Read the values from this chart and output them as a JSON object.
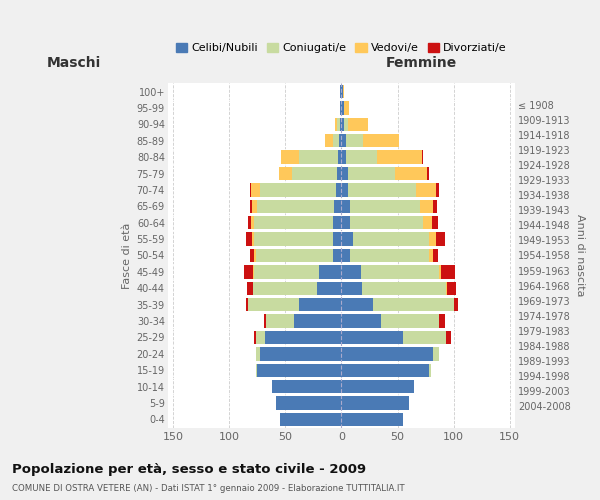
{
  "age_groups": [
    "0-4",
    "5-9",
    "10-14",
    "15-19",
    "20-24",
    "25-29",
    "30-34",
    "35-39",
    "40-44",
    "45-49",
    "50-54",
    "55-59",
    "60-64",
    "65-69",
    "70-74",
    "75-79",
    "80-84",
    "85-89",
    "90-94",
    "95-99",
    "100+"
  ],
  "birth_years": [
    "2004-2008",
    "1999-2003",
    "1994-1998",
    "1989-1993",
    "1984-1988",
    "1979-1983",
    "1974-1978",
    "1969-1973",
    "1964-1968",
    "1959-1963",
    "1954-1958",
    "1949-1953",
    "1944-1948",
    "1939-1943",
    "1934-1938",
    "1929-1933",
    "1924-1928",
    "1919-1923",
    "1914-1918",
    "1909-1913",
    "≤ 1908"
  ],
  "maschi": {
    "celibe": [
      55,
      58,
      62,
      75,
      73,
      68,
      42,
      38,
      22,
      20,
      8,
      8,
      8,
      7,
      5,
      4,
      3,
      2,
      1,
      1,
      1
    ],
    "coniugato": [
      0,
      0,
      0,
      1,
      3,
      8,
      25,
      45,
      57,
      58,
      68,
      70,
      70,
      68,
      68,
      40,
      35,
      6,
      3,
      0,
      0
    ],
    "vedovo": [
      0,
      0,
      0,
      0,
      0,
      0,
      0,
      0,
      0,
      1,
      2,
      2,
      3,
      5,
      8,
      12,
      16,
      7,
      2,
      0,
      0
    ],
    "divorziato": [
      0,
      0,
      0,
      0,
      0,
      2,
      2,
      2,
      5,
      8,
      4,
      5,
      2,
      2,
      1,
      0,
      0,
      0,
      0,
      0,
      0
    ]
  },
  "femmine": {
    "nubile": [
      55,
      60,
      65,
      78,
      82,
      55,
      35,
      28,
      18,
      17,
      8,
      10,
      8,
      8,
      6,
      6,
      4,
      4,
      2,
      2,
      1
    ],
    "coniugata": [
      0,
      0,
      0,
      2,
      5,
      38,
      52,
      72,
      75,
      70,
      70,
      68,
      65,
      62,
      60,
      42,
      28,
      15,
      4,
      0,
      0
    ],
    "vedova": [
      0,
      0,
      0,
      0,
      0,
      0,
      0,
      0,
      1,
      2,
      4,
      6,
      8,
      12,
      18,
      28,
      40,
      32,
      18,
      5,
      1
    ],
    "divorziata": [
      0,
      0,
      0,
      0,
      0,
      5,
      5,
      4,
      8,
      12,
      4,
      8,
      5,
      3,
      3,
      2,
      1,
      0,
      0,
      0,
      0
    ]
  },
  "colors": {
    "celibe": "#4a7ab5",
    "coniugato": "#c8dba0",
    "vedovo": "#ffc85a",
    "divorziato": "#cc1111"
  },
  "title": "Popolazione per età, sesso e stato civile - 2009",
  "subtitle": "COMUNE DI OSTRA VETERE (AN) - Dati ISTAT 1° gennaio 2009 - Elaborazione TUTTITALIA.IT",
  "xlabel_left": "Maschi",
  "xlabel_right": "Femmine",
  "ylabel_left": "Fasce di età",
  "ylabel_right": "Anni di nascita",
  "xlim": 155,
  "bg_color": "#f0f0f0",
  "plot_bg_color": "#ffffff",
  "legend_labels": [
    "Celibi/Nubili",
    "Coniugati/e",
    "Vedovi/e",
    "Divorziati/e"
  ]
}
